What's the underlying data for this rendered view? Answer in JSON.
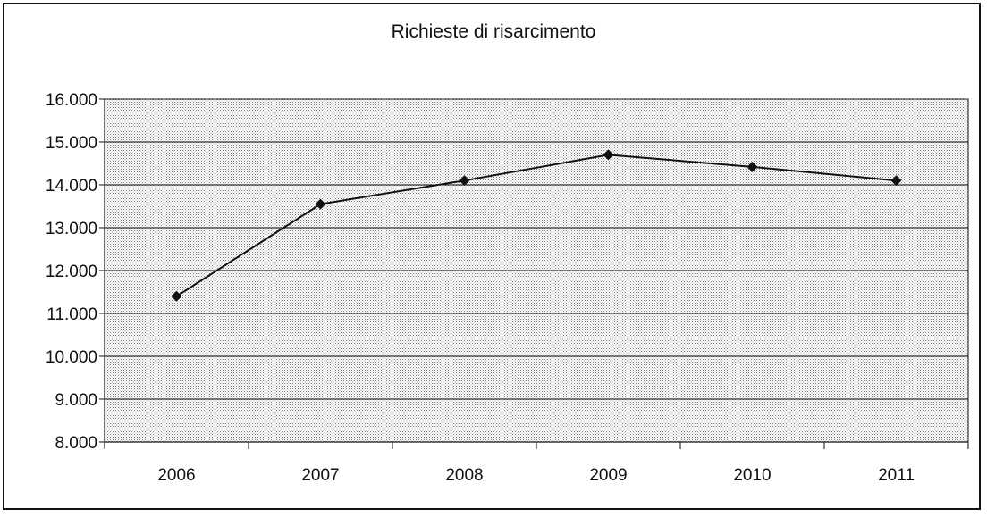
{
  "chart_data": {
    "type": "line",
    "title": "Richieste di risarcimento",
    "xlabel": "",
    "ylabel": "",
    "categories": [
      "2006",
      "2007",
      "2008",
      "2009",
      "2010",
      "2011"
    ],
    "series": [
      {
        "values": [
          11400,
          13550,
          14100,
          14700,
          14420,
          14100
        ]
      }
    ],
    "ylim": [
      8000,
      16000
    ],
    "yticks": [
      8000,
      9000,
      10000,
      11000,
      12000,
      13000,
      14000,
      15000,
      16000
    ],
    "ytick_labels": [
      "8.000",
      "9.000",
      "10.000",
      "11.000",
      "12.000",
      "13.000",
      "14.000",
      "15.000",
      "16.000"
    ],
    "grid": true,
    "legend": "none",
    "colors": {
      "line": "#111111",
      "marker": "#111111",
      "plot_background": "#d9d9d9"
    }
  }
}
